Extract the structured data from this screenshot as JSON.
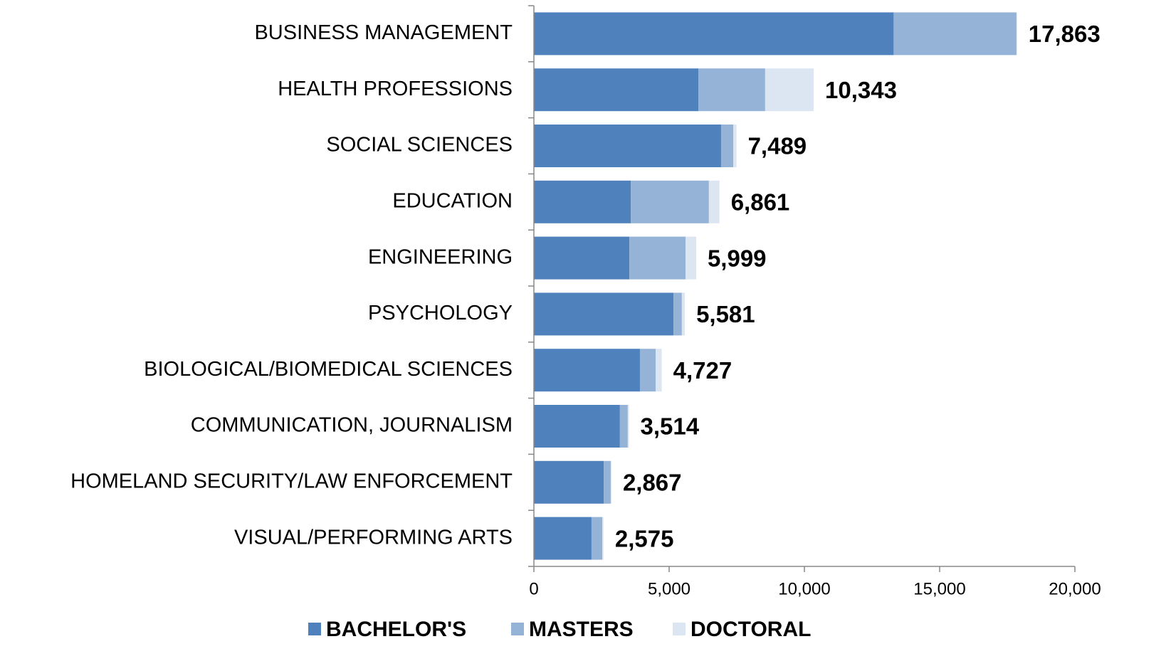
{
  "chart_data": {
    "type": "stacked-barh",
    "categories": [
      "BUSINESS MANAGEMENT",
      "HEALTH PROFESSIONS",
      "SOCIAL SCIENCES",
      "EDUCATION",
      "ENGINEERING",
      "PSYCHOLOGY",
      "BIOLOGICAL/BIOMEDICAL SCIENCES",
      "COMMUNICATION, JOURNALISM",
      "HOMELAND SECURITY/LAW ENFORCEMENT",
      "VISUAL/PERFORMING ARTS"
    ],
    "series": [
      {
        "name": "BACHELOR'S",
        "color": "#4f81bd",
        "values": [
          13300,
          6080,
          6920,
          3580,
          3530,
          5160,
          3920,
          3180,
          2580,
          2130
        ]
      },
      {
        "name": "MASTERS",
        "color": "#95b3d7",
        "values": [
          4540,
          2470,
          450,
          2890,
          2080,
          310,
          580,
          290,
          260,
          400
        ]
      },
      {
        "name": "DOCTORAL",
        "color": "#dce6f2",
        "values": [
          23,
          1793,
          119,
          391,
          389,
          111,
          227,
          44,
          27,
          45
        ]
      }
    ],
    "totals": {
      "values": [
        17863,
        10343,
        7489,
        6861,
        5999,
        5581,
        4727,
        3514,
        2867,
        2575
      ],
      "value_labels": [
        "17,863",
        "10,343",
        "7,489",
        "6,861",
        "5,999",
        "5,581",
        "4,727",
        "3,514",
        "2,867",
        "2,575"
      ]
    },
    "xlim": [
      0,
      20000
    ],
    "xticks": [
      0,
      {
        "value": 5000,
        "label": "5,000"
      },
      {
        "value": 10000,
        "label": "10,000"
      },
      {
        "value": 15000,
        "label": "15,000"
      },
      {
        "value": 20000,
        "label": "20,000"
      }
    ],
    "legend": "bottom"
  }
}
